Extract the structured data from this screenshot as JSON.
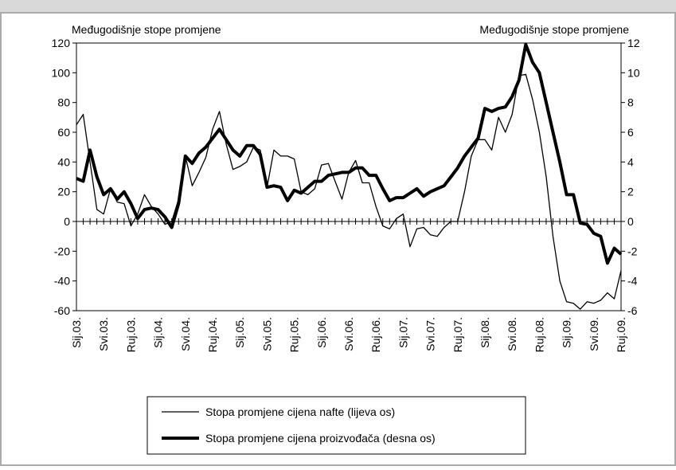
{
  "chart_data": {
    "type": "line",
    "y_axis_label": "Međugodišnje stope promjene",
    "y2_axis_label": "Međugodišnje stope promjene",
    "categories": [
      "Sij.03.",
      null,
      null,
      null,
      "Svi.03.",
      null,
      null,
      null,
      "Ruj.03.",
      null,
      null,
      null,
      "Sij.04.",
      null,
      null,
      null,
      "Svi.04.",
      null,
      null,
      null,
      "Ruj.04.",
      null,
      null,
      null,
      "Sij.05.",
      null,
      null,
      null,
      "Svi.05.",
      null,
      null,
      null,
      "Ruj.05.",
      null,
      null,
      null,
      "Sij.06.",
      null,
      null,
      null,
      "Svi.06.",
      null,
      null,
      null,
      "Ruj.06.",
      null,
      null,
      null,
      "Sij.07.",
      null,
      null,
      null,
      "Svi.07.",
      null,
      null,
      null,
      "Ruj.07.",
      null,
      null,
      null,
      "Sij.08.",
      null,
      null,
      null,
      "Svi.08.",
      null,
      null,
      null,
      "Ruj.08.",
      null,
      null,
      null,
      "Sij.09.",
      null,
      null,
      null,
      "Svi.09.",
      null,
      null,
      null,
      "Ruj.09."
    ],
    "series": [
      {
        "name": "Stopa promjene cijena nafte (lijeva os)",
        "color": "#000000",
        "width": 1.3,
        "values": [
          65,
          72,
          40,
          8,
          5,
          22,
          13,
          12,
          -3,
          5,
          18,
          10,
          5,
          -2,
          0,
          15,
          44,
          24,
          33,
          43,
          62,
          74,
          52,
          35,
          37,
          40,
          50,
          48,
          23,
          48,
          44,
          44,
          42,
          20,
          18,
          22,
          38,
          39,
          27,
          15,
          33,
          41,
          26,
          26,
          10,
          -3,
          -5,
          2,
          5,
          -17,
          -5,
          -4,
          -9,
          -10,
          -4,
          0,
          0,
          20,
          44,
          55,
          55,
          48,
          70,
          60,
          72,
          98,
          99,
          82,
          60,
          30,
          -10,
          -40,
          -54,
          -55,
          -59,
          -54,
          -55,
          -53,
          -48,
          -52,
          -33
        ]
      },
      {
        "name": "Stopa promjene cijena proizvođača (desna os)",
        "color": "#000000",
        "width": 4,
        "axis": "y2",
        "values": [
          2.9,
          2.7,
          4.8,
          3.0,
          1.8,
          2.2,
          1.5,
          2.0,
          1.2,
          0.2,
          0.8,
          0.9,
          0.8,
          0.3,
          -0.4,
          1.2,
          4.4,
          3.9,
          4.6,
          5.0,
          5.6,
          6.2,
          5.5,
          4.8,
          4.4,
          5.1,
          5.1,
          4.5,
          2.3,
          2.4,
          2.3,
          1.4,
          2.1,
          1.9,
          2.3,
          2.7,
          2.7,
          3.1,
          3.2,
          3.3,
          3.3,
          3.6,
          3.6,
          3.1,
          3.1,
          2.2,
          1.4,
          1.6,
          1.6,
          1.9,
          2.2,
          1.7,
          2.0,
          2.2,
          2.4,
          3.0,
          3.6,
          4.4,
          5.0,
          5.6,
          7.6,
          7.4,
          7.6,
          7.7,
          8.4,
          9.5,
          11.9,
          10.7,
          10.0,
          8.0,
          6.0,
          4.0,
          1.8,
          1.8,
          -0.1,
          -0.2,
          -0.8,
          -1.0,
          -2.8,
          -1.8,
          -2.2
        ]
      }
    ],
    "ylim": [
      -60,
      120
    ],
    "yticks": [
      -60,
      -40,
      -20,
      0,
      20,
      40,
      60,
      80,
      100,
      120
    ],
    "y2lim": [
      -6,
      12
    ],
    "y2ticks": [
      -6,
      -4,
      -2,
      0,
      2,
      4,
      6,
      8,
      10,
      12
    ],
    "legend": "bottom"
  }
}
